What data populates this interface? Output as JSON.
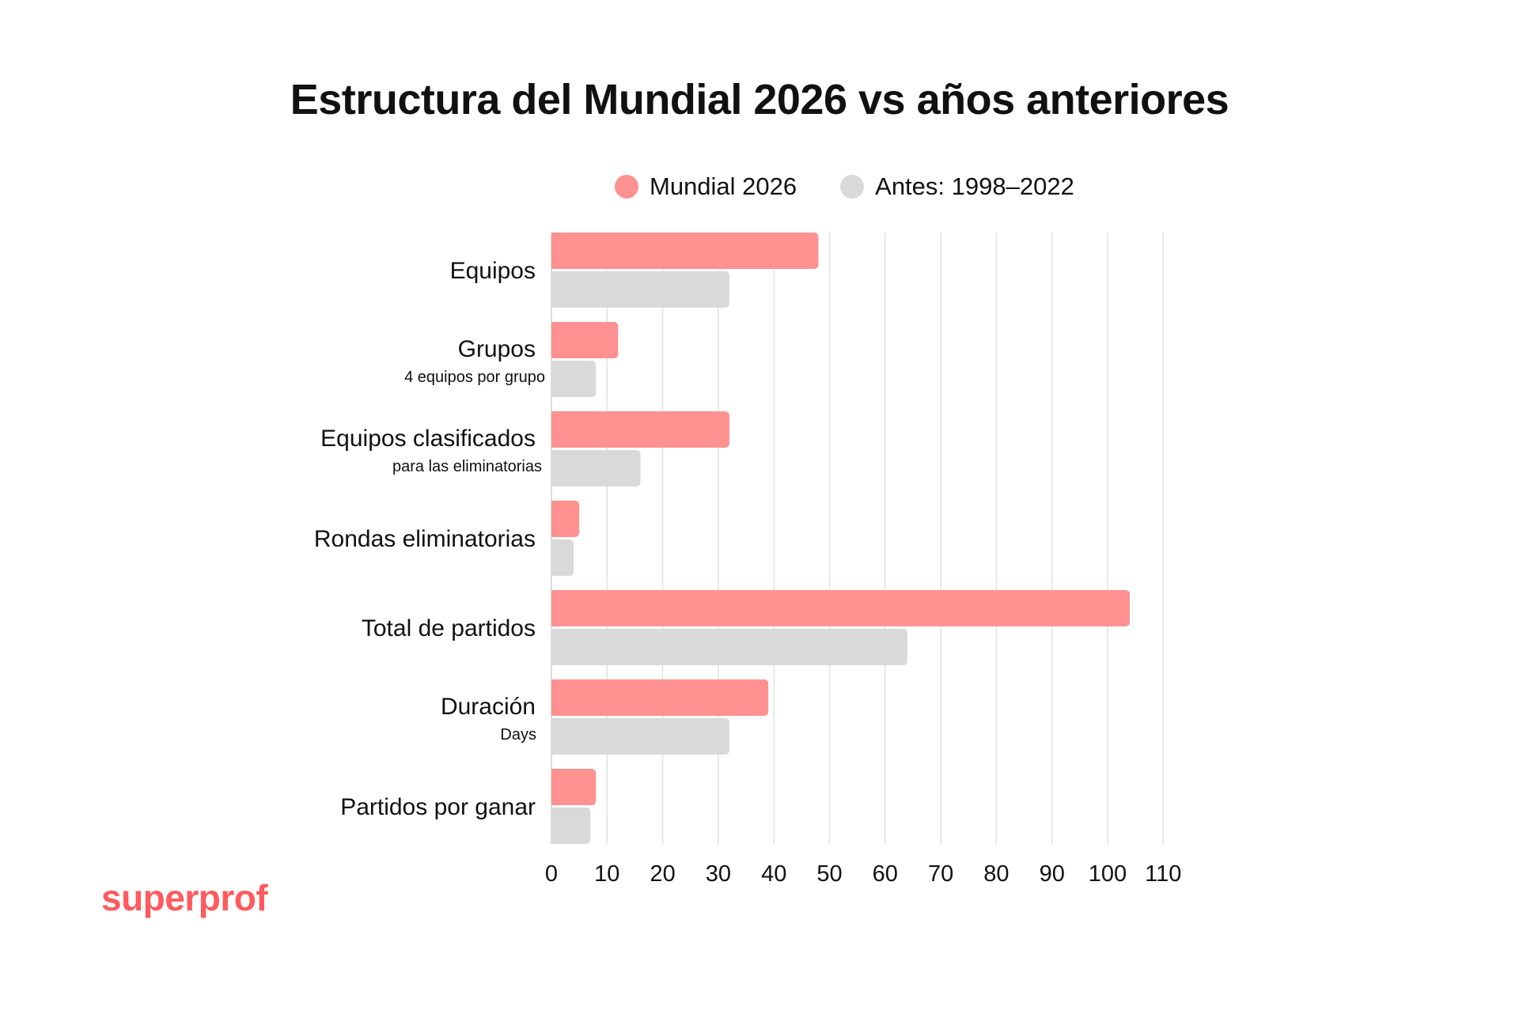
{
  "chart_data": {
    "type": "bar",
    "orientation": "horizontal",
    "title": "Estructura del Mundial 2026 vs años anteriores",
    "categories": [
      "Equipos",
      "Grupos",
      "Equipos clasificados",
      "Rondas eliminatorias",
      "Total de partidos",
      "Duración",
      "Partidos por ganar"
    ],
    "category_sublabels": [
      "",
      "4 equipos por grupo",
      "para las eliminatorias",
      "",
      "",
      "Days",
      ""
    ],
    "series": [
      {
        "name": "Mundial 2026",
        "color": "#ff9191",
        "values": [
          48,
          12,
          32,
          5,
          104,
          39,
          8
        ]
      },
      {
        "name": "Antes: 1998–2022",
        "color": "#d9d9d9",
        "values": [
          32,
          8,
          16,
          4,
          64,
          32,
          7
        ]
      }
    ],
    "xlim": [
      0,
      110
    ],
    "xticks": [
      "0",
      "10",
      "20",
      "30",
      "40",
      "50",
      "60",
      "70",
      "80",
      "90",
      "100",
      "110"
    ],
    "grid": true,
    "legend": "top"
  },
  "brand": "superprof",
  "brand_color": "#ff5a5f"
}
